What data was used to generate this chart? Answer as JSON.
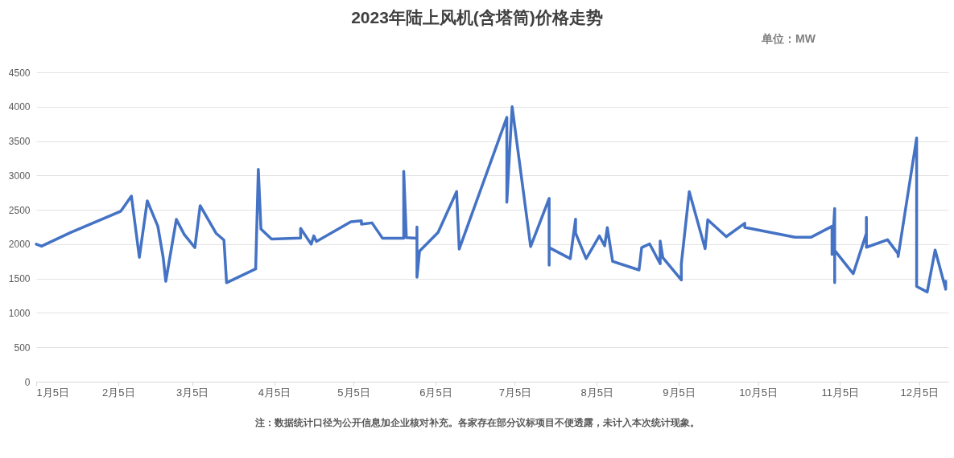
{
  "chart_data": {
    "type": "line",
    "title": "2023年陆上风机(含塔筒)价格走势",
    "subtitle": "单位：MW",
    "annotations": [
      "注：数据统计口径为公开信息加企业核对补充。各家存在部分议标项目不便透露，未计入本次统计现象。"
    ],
    "x": [
      "2023-01-05",
      "2023-01-07",
      "2023-01-18",
      "2023-02-06",
      "2023-02-10",
      "2023-02-13",
      "2023-02-16",
      "2023-02-20",
      "2023-02-22",
      "2023-02-23",
      "2023-02-27",
      "2023-03-02",
      "2023-03-06",
      "2023-03-08",
      "2023-03-14",
      "2023-03-17",
      "2023-03-18",
      "2023-03-29",
      "2023-03-30",
      "2023-03-31",
      "2023-04-04",
      "2023-04-15",
      "2023-04-15",
      "2023-04-19",
      "2023-04-20",
      "2023-04-21",
      "2023-05-04",
      "2023-05-08",
      "2023-05-08",
      "2023-05-12",
      "2023-05-16",
      "2023-05-24",
      "2023-05-24",
      "2023-05-25",
      "2023-05-29",
      "2023-05-29",
      "2023-05-29",
      "2023-05-30",
      "2023-06-06",
      "2023-06-13",
      "2023-06-14",
      "2023-07-02",
      "2023-07-02",
      "2023-07-04",
      "2023-07-11",
      "2023-07-18",
      "2023-07-18",
      "2023-07-18",
      "2023-07-26",
      "2023-07-28",
      "2023-07-28",
      "2023-08-01",
      "2023-08-06",
      "2023-08-08",
      "2023-08-09",
      "2023-08-11",
      "2023-08-21",
      "2023-08-22",
      "2023-08-25",
      "2023-08-29",
      "2023-08-29",
      "2023-08-30",
      "2023-09-06",
      "2023-09-06",
      "2023-09-09",
      "2023-09-15",
      "2023-09-16",
      "2023-09-23",
      "2023-09-30",
      "2023-09-30",
      "2023-10-19",
      "2023-10-25",
      "2023-11-02",
      "2023-11-02",
      "2023-11-03",
      "2023-11-03",
      "2023-11-03",
      "2023-11-10",
      "2023-11-15",
      "2023-11-15",
      "2023-11-15",
      "2023-11-23",
      "2023-11-27",
      "2023-11-27",
      "2023-12-04",
      "2023-12-04",
      "2023-12-08",
      "2023-12-11",
      "2023-12-15",
      "2023-12-15"
    ],
    "series": [
      {
        "color": "#4472c4",
        "values": [
          2000,
          1970,
          2170,
          2480,
          2700,
          1810,
          2630,
          2260,
          1810,
          1460,
          2360,
          2140,
          1950,
          2560,
          2160,
          2060,
          1440,
          1640,
          3090,
          2220,
          2075,
          2090,
          2230,
          2000,
          2120,
          2040,
          2325,
          2340,
          2290,
          2310,
          2085,
          2085,
          3060,
          2095,
          2085,
          2250,
          1520,
          1900,
          2170,
          2765,
          1930,
          3845,
          2610,
          4000,
          1965,
          2665,
          1695,
          1950,
          1790,
          2365,
          2160,
          1790,
          2120,
          1975,
          2240,
          1750,
          1625,
          1950,
          2005,
          1715,
          2045,
          1805,
          1480,
          1715,
          2765,
          1935,
          2355,
          2110,
          2305,
          2245,
          2100,
          2100,
          2260,
          1850,
          2520,
          1440,
          1910,
          1570,
          2160,
          2390,
          1955,
          2065,
          1860,
          1820,
          3545,
          1385,
          1305,
          1915,
          1345,
          1460
        ]
      }
    ],
    "xlim": [
      "2023-01-05",
      "2023-12-16"
    ],
    "xticks": [
      {
        "value": "2023-01-05",
        "label": "1月5日"
      },
      {
        "value": "2023-02-05",
        "label": "2月5日"
      },
      {
        "value": "2023-03-05",
        "label": "3月5日"
      },
      {
        "value": "2023-04-05",
        "label": "4月5日"
      },
      {
        "value": "2023-05-05",
        "label": "5月5日"
      },
      {
        "value": "2023-06-05",
        "label": "6月5日"
      },
      {
        "value": "2023-07-05",
        "label": "7月5日"
      },
      {
        "value": "2023-08-05",
        "label": "8月5日"
      },
      {
        "value": "2023-09-05",
        "label": "9月5日"
      },
      {
        "value": "2023-10-05",
        "label": "10月5日"
      },
      {
        "value": "2023-11-05",
        "label": "11月5日"
      },
      {
        "value": "2023-12-05",
        "label": "12月5日"
      }
    ],
    "ylim": [
      0,
      4500
    ],
    "yticks": [
      0,
      500,
      1000,
      1500,
      2000,
      2500,
      3000,
      3500,
      4000,
      4500
    ],
    "grid": "y"
  }
}
